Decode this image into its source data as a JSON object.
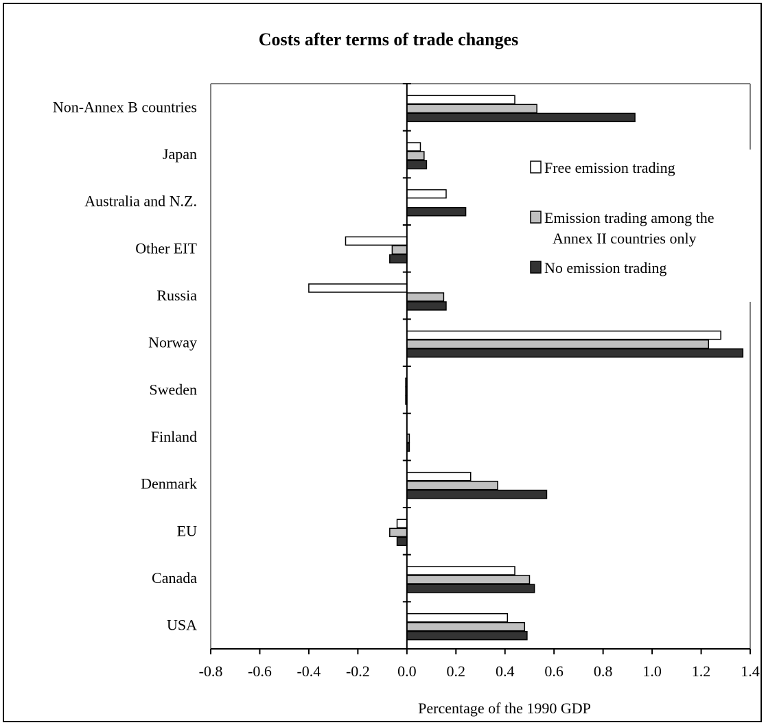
{
  "chart_data": {
    "type": "bar",
    "orientation": "horizontal",
    "title": "Costs after terms of trade changes",
    "xlabel": "Percentage of the 1990 GDP",
    "ylabel": "",
    "xlim": [
      -0.8,
      1.4
    ],
    "x_ticks": [
      "-0.8",
      "-0.6",
      "-0.4",
      "-0.2",
      "0.0",
      "0.2",
      "0.4",
      "0.6",
      "0.8",
      "1.0",
      "1.2",
      "1.4"
    ],
    "grid": false,
    "legend_position": "right",
    "categories": [
      "Non-Annex B countries",
      "Japan",
      "Australia and N.Z.",
      "Other EIT",
      "Russia",
      "Norway",
      "Sweden",
      "Finland",
      "Denmark",
      "EU",
      "Canada",
      "USA"
    ],
    "series": [
      {
        "name": "Free emission  trading",
        "color": "#ffffff",
        "values": [
          0.44,
          0.055,
          0.16,
          -0.25,
          -0.4,
          1.28,
          -0.005,
          0.0,
          0.26,
          -0.04,
          0.44,
          0.41
        ]
      },
      {
        "name": "Emission trading among the Annex II countries only",
        "color": "#c0c0c0",
        "values": [
          0.53,
          0.07,
          0.0,
          -0.06,
          0.15,
          1.23,
          -0.005,
          0.01,
          0.37,
          -0.07,
          0.5,
          0.48
        ]
      },
      {
        "name": "No emission trading",
        "color": "#333333",
        "values": [
          0.93,
          0.08,
          0.24,
          -0.07,
          0.16,
          1.37,
          -0.005,
          0.01,
          0.57,
          -0.04,
          0.52,
          0.49
        ]
      }
    ]
  },
  "legend": {
    "free": "Free emission  trading",
    "annex_line1": "Emission trading among the",
    "annex_line2": "Annex II countries only",
    "none": "No emission trading"
  },
  "colors": {
    "free": "#ffffff",
    "annex": "#c0c0c0",
    "none": "#333333",
    "plot_border": "#808080"
  }
}
